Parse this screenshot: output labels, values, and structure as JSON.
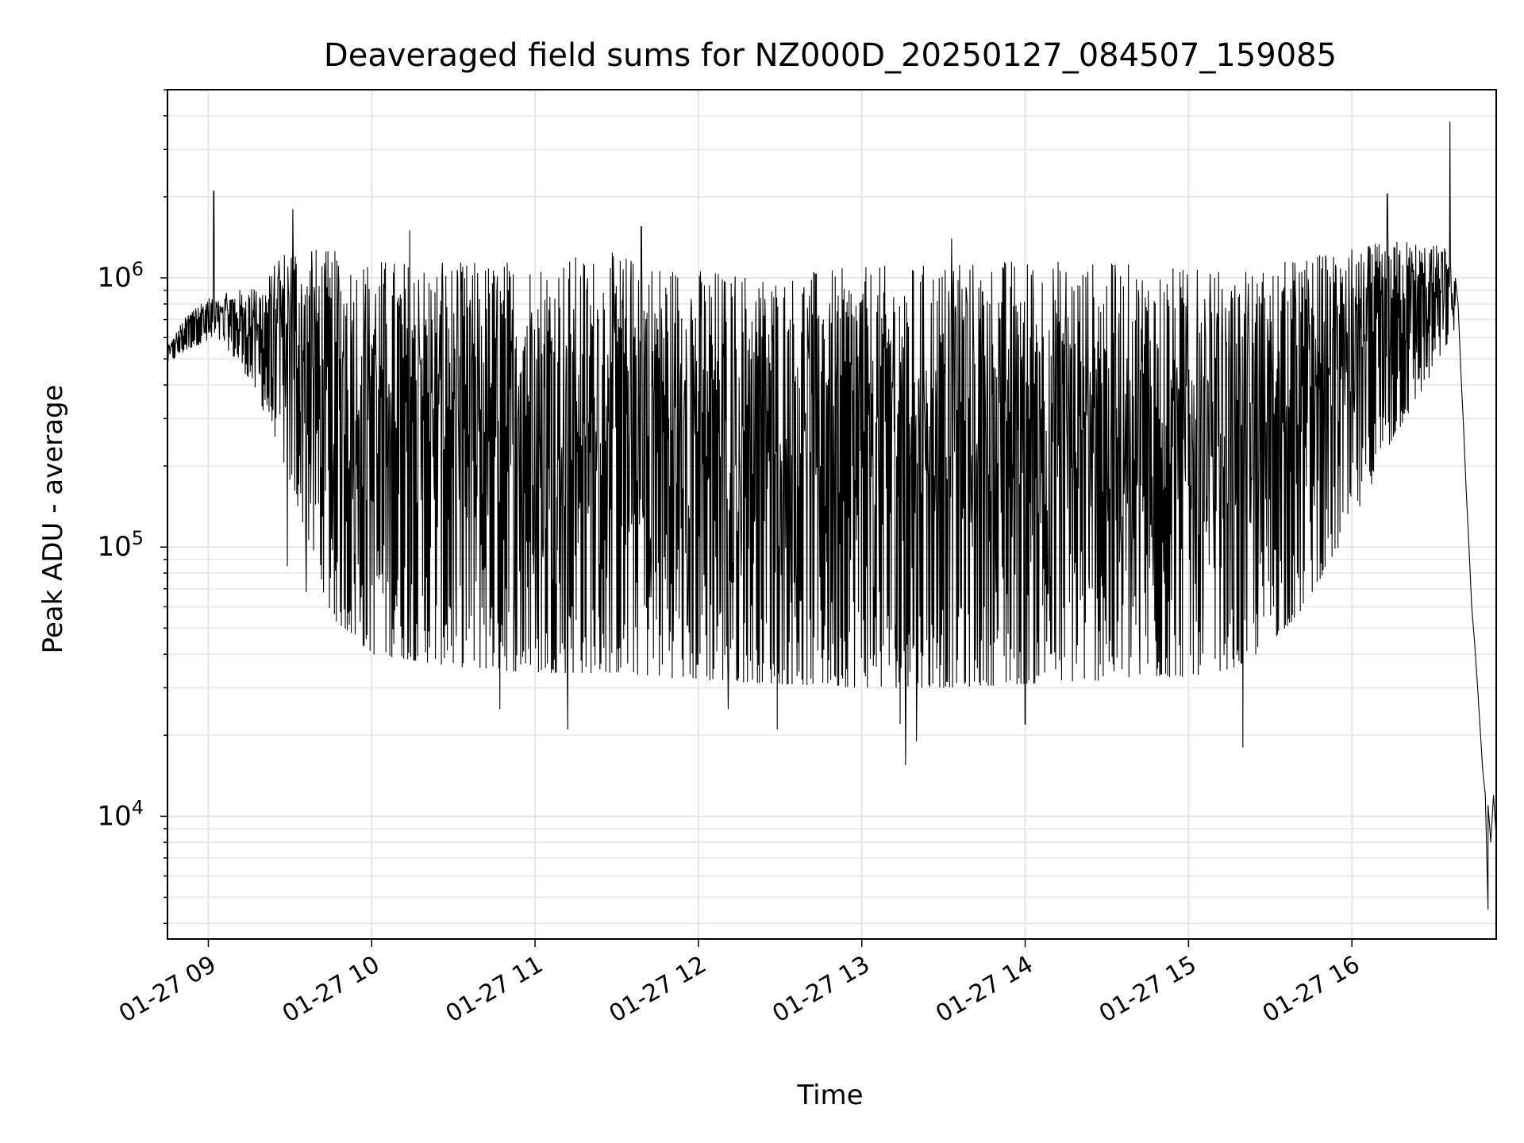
{
  "chart_data": {
    "type": "line",
    "title": "Deaveraged field sums for NZ000D_20250127_084507_159085",
    "xlabel": "Time",
    "ylabel": "Peak ADU - average",
    "yscale": "log",
    "xlim": [
      "2025-01-27 08:45",
      "2025-01-27 16:53"
    ],
    "ylim": [
      3500,
      5000000
    ],
    "grid": true,
    "line_color": "#000000",
    "grid_color": "#e6e6e6",
    "x_ticks": [
      {
        "value": "2025-01-27 09:00",
        "label": "01-27 09"
      },
      {
        "value": "2025-01-27 10:00",
        "label": "01-27 10"
      },
      {
        "value": "2025-01-27 11:00",
        "label": "01-27 11"
      },
      {
        "value": "2025-01-27 12:00",
        "label": "01-27 12"
      },
      {
        "value": "2025-01-27 13:00",
        "label": "01-27 13"
      },
      {
        "value": "2025-01-27 14:00",
        "label": "01-27 14"
      },
      {
        "value": "2025-01-27 15:00",
        "label": "01-27 15"
      },
      {
        "value": "2025-01-27 16:00",
        "label": "01-27 16"
      }
    ],
    "y_ticks": [
      {
        "value": 10000,
        "base": "10",
        "exp": "4"
      },
      {
        "value": 100000,
        "base": "10",
        "exp": "5"
      },
      {
        "value": 1000000,
        "base": "10",
        "exp": "6"
      }
    ],
    "series": [
      {
        "upper_envelope": [
          [
            "2025-01-27 08:45",
            550000
          ],
          [
            "2025-01-27 08:50",
            680000
          ],
          [
            "2025-01-27 08:55",
            800000
          ],
          [
            "2025-01-27 09:00",
            850000
          ],
          [
            "2025-01-27 09:10",
            900000
          ],
          [
            "2025-01-27 09:20",
            950000
          ],
          [
            "2025-01-27 09:30",
            1400000
          ],
          [
            "2025-01-27 09:40",
            1300000
          ],
          [
            "2025-01-27 10:00",
            1200000
          ],
          [
            "2025-01-27 10:30",
            1150000
          ],
          [
            "2025-01-27 11:00",
            1200000
          ],
          [
            "2025-01-27 11:30",
            1250000
          ],
          [
            "2025-01-27 12:00",
            1100000
          ],
          [
            "2025-01-27 12:30",
            1050000
          ],
          [
            "2025-01-27 13:00",
            1100000
          ],
          [
            "2025-01-27 13:30",
            1150000
          ],
          [
            "2025-01-27 14:00",
            1200000
          ],
          [
            "2025-01-27 14:30",
            1150000
          ],
          [
            "2025-01-27 15:00",
            1100000
          ],
          [
            "2025-01-27 15:20",
            1050000
          ],
          [
            "2025-01-27 15:40",
            1200000
          ],
          [
            "2025-01-27 16:00",
            1300000
          ],
          [
            "2025-01-27 16:20",
            1400000
          ],
          [
            "2025-01-27 16:35",
            1300000
          ],
          [
            "2025-01-27 16:38",
            1000000
          ]
        ],
        "lower_envelope": [
          [
            "2025-01-27 08:45",
            480000
          ],
          [
            "2025-01-27 08:55",
            560000
          ],
          [
            "2025-01-27 09:05",
            580000
          ],
          [
            "2025-01-27 09:15",
            420000
          ],
          [
            "2025-01-27 09:25",
            250000
          ],
          [
            "2025-01-27 09:35",
            120000
          ],
          [
            "2025-01-27 09:45",
            55000
          ],
          [
            "2025-01-27 10:00",
            40000
          ],
          [
            "2025-01-27 10:30",
            36000
          ],
          [
            "2025-01-27 11:00",
            34000
          ],
          [
            "2025-01-27 11:30",
            34000
          ],
          [
            "2025-01-27 12:00",
            32000
          ],
          [
            "2025-01-27 12:30",
            31000
          ],
          [
            "2025-01-27 13:00",
            30000
          ],
          [
            "2025-01-27 13:30",
            30000
          ],
          [
            "2025-01-27 14:00",
            31000
          ],
          [
            "2025-01-27 14:30",
            32000
          ],
          [
            "2025-01-27 15:00",
            33000
          ],
          [
            "2025-01-27 15:20",
            36000
          ],
          [
            "2025-01-27 15:40",
            55000
          ],
          [
            "2025-01-27 16:00",
            120000
          ],
          [
            "2025-01-27 16:15",
            250000
          ],
          [
            "2025-01-27 16:30",
            450000
          ],
          [
            "2025-01-27 16:38",
            650000
          ]
        ],
        "spikes": [
          [
            "2025-01-27 09:02",
            2100000
          ],
          [
            "2025-01-27 09:31",
            1800000
          ],
          [
            "2025-01-27 10:14",
            1500000
          ],
          [
            "2025-01-27 11:39",
            1550000
          ],
          [
            "2025-01-27 13:33",
            1400000
          ],
          [
            "2025-01-27 16:13",
            2050000
          ],
          [
            "2025-01-27 16:36",
            3800000
          ],
          [
            "2025-01-27 09:29",
            85000
          ],
          [
            "2025-01-27 09:36",
            68000
          ],
          [
            "2025-01-27 11:12",
            21000
          ],
          [
            "2025-01-27 12:29",
            21000
          ],
          [
            "2025-01-27 13:14",
            22000
          ],
          [
            "2025-01-27 13:16",
            15500
          ],
          [
            "2025-01-27 13:20",
            19000
          ],
          [
            "2025-01-27 14:00",
            22000
          ],
          [
            "2025-01-27 15:20",
            18000
          ],
          [
            "2025-01-27 10:47",
            25000
          ],
          [
            "2025-01-27 12:11",
            25000
          ]
        ],
        "tail": [
          [
            "2025-01-27 16:38",
            1000000
          ],
          [
            "2025-01-27 16:39",
            800000
          ],
          [
            "2025-01-27 16:40",
            450000
          ],
          [
            "2025-01-27 16:41",
            280000
          ],
          [
            "2025-01-27 16:42",
            160000
          ],
          [
            "2025-01-27 16:43",
            100000
          ],
          [
            "2025-01-27 16:44",
            60000
          ],
          [
            "2025-01-27 16:45",
            45000
          ],
          [
            "2025-01-27 16:46",
            32000
          ],
          [
            "2025-01-27 16:47",
            22000
          ],
          [
            "2025-01-27 16:48",
            15000
          ],
          [
            "2025-01-27 16:49",
            12000
          ],
          [
            "2025-01-27 16:50",
            4500
          ],
          [
            "2025-01-27 16:50",
            11000
          ],
          [
            "2025-01-27 16:51",
            8000
          ],
          [
            "2025-01-27 16:52",
            12000
          ],
          [
            "2025-01-27 16:53",
            8500
          ]
        ]
      }
    ]
  }
}
